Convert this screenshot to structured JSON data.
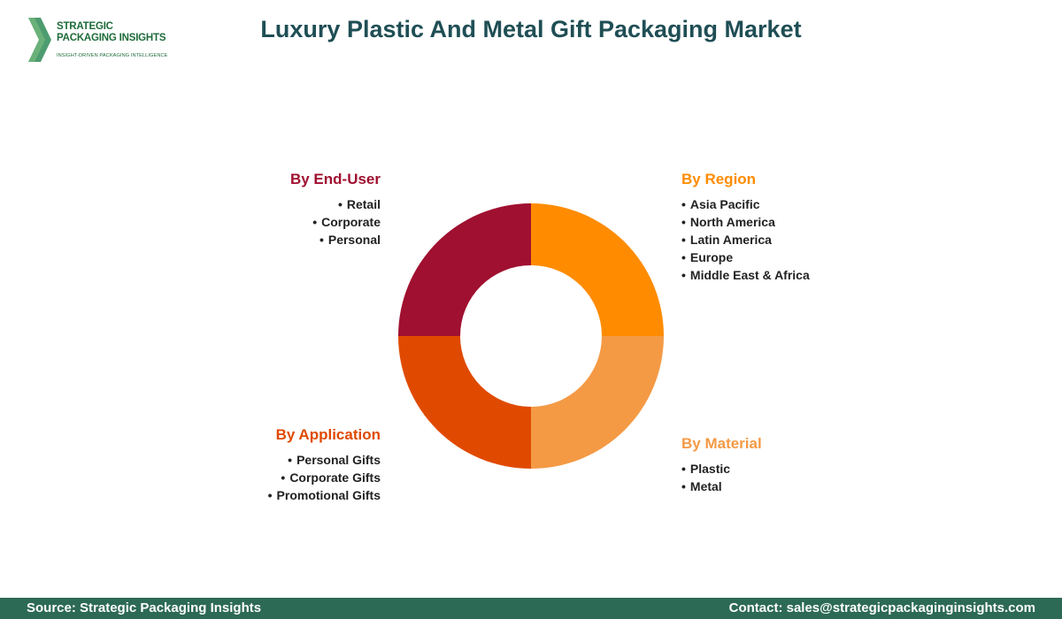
{
  "logo": {
    "line1": "STRATEGIC",
    "line2": "PACKAGING INSIGHTS",
    "tagline": "INSIGHT-DRIVEN PACKAGING INTELLIGENCE"
  },
  "title": "Luxury Plastic And Metal Gift Packaging Market",
  "colors": {
    "region": "#ff8c00",
    "material": "#f49a45",
    "application": "#e04a00",
    "end_user": "#a01030",
    "footer": "#2d6a56",
    "title": "#1f4e55"
  },
  "chart_data": {
    "type": "pie",
    "donut": true,
    "slices": [
      {
        "label": "By Region",
        "value": 25,
        "color": "#ff8c00"
      },
      {
        "label": "By Material",
        "value": 25,
        "color": "#f49a45"
      },
      {
        "label": "By Application",
        "value": 25,
        "color": "#e04a00"
      },
      {
        "label": "By End-User",
        "value": 25,
        "color": "#a01030"
      }
    ]
  },
  "segments": {
    "end_user": {
      "title": "By End-User",
      "items": [
        "Retail",
        "Corporate",
        "Personal"
      ]
    },
    "region": {
      "title": "By Region",
      "items": [
        "Asia Pacific",
        "North America",
        "Latin America",
        "Europe",
        "Middle East & Africa"
      ]
    },
    "application": {
      "title": "By Application",
      "items": [
        "Personal Gifts",
        "Corporate Gifts",
        "Promotional Gifts"
      ]
    },
    "material": {
      "title": "By Material",
      "items": [
        "Plastic",
        "Metal"
      ]
    }
  },
  "footer": {
    "source": "Source: Strategic Packaging Insights",
    "contact": "Contact: sales@strategicpackaginginsights.com"
  }
}
